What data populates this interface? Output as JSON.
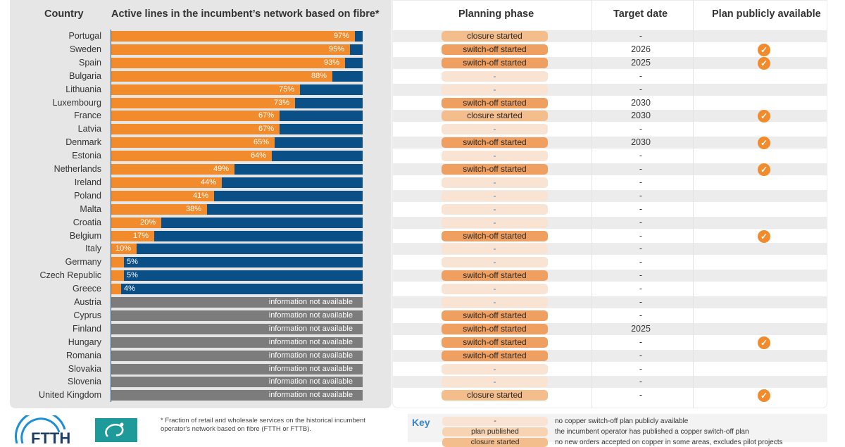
{
  "headers": {
    "country": "Country",
    "fibre": "Active lines in the incumbent’s network based on fibre*",
    "phase": "Planning phase",
    "target": "Target date",
    "plan": "Plan publicly available"
  },
  "chart_data": {
    "type": "bar",
    "orientation": "horizontal",
    "xlim": [
      0,
      100
    ],
    "categories": [
      "Portugal",
      "Sweden",
      "Spain",
      "Bulgaria",
      "Lithuania",
      "Luxembourg",
      "France",
      "Latvia",
      "Denmark",
      "Estonia",
      "Netherlands",
      "Ireland",
      "Poland",
      "Malta",
      "Croatia",
      "Belgium",
      "Italy",
      "Germany",
      "Czech Republic",
      "Greece",
      "Austria",
      "Cyprus",
      "Finland",
      "Hungary",
      "Romania",
      "Slovakia",
      "Slovenia",
      "United Kingdom"
    ],
    "values": [
      97,
      95,
      93,
      88,
      75,
      73,
      67,
      67,
      65,
      64,
      49,
      44,
      41,
      38,
      20,
      17,
      10,
      5,
      5,
      4,
      null,
      null,
      null,
      null,
      null,
      null,
      null,
      null
    ],
    "value_labels": [
      "97%",
      "95%",
      "93%",
      "88%",
      "75%",
      "73%",
      "67%",
      "67%",
      "65%",
      "64%",
      "49%",
      "44%",
      "41%",
      "38%",
      "20%",
      "17%",
      "10%",
      "5%",
      "5%",
      "4%",
      "information not available",
      "information not available",
      "information not available",
      "information not available",
      "information not available",
      "information not available",
      "information not available",
      "information not available"
    ],
    "colors": {
      "fibre": "#f28b2c",
      "remainder": "#0a4f86",
      "na": "#7c7c7c"
    }
  },
  "table": {
    "phase": [
      "closure started",
      "switch-off started",
      "switch-off started",
      "-",
      "-",
      "switch-off started",
      "closure started",
      "-",
      "switch-off started",
      "-",
      "switch-off started",
      "-",
      "-",
      "-",
      "-",
      "switch-off started",
      "-",
      "-",
      "switch-off started",
      "-",
      "-",
      "switch-off started",
      "switch-off started",
      "switch-off started",
      "switch-off started",
      "-",
      "-",
      "closure started"
    ],
    "target": [
      "-",
      "2026",
      "2025",
      "-",
      "-",
      "2030",
      "2030",
      "-",
      "2030",
      "-",
      "-",
      "-",
      "-",
      "-",
      "-",
      "-",
      "-",
      "-",
      "-",
      "-",
      "-",
      "-",
      "2025",
      "-",
      "-",
      "-",
      "-",
      "-"
    ],
    "plan_available": [
      false,
      true,
      true,
      false,
      false,
      false,
      true,
      false,
      true,
      false,
      true,
      false,
      false,
      false,
      false,
      true,
      false,
      false,
      false,
      false,
      false,
      false,
      false,
      true,
      false,
      false,
      false,
      true
    ]
  },
  "footnote": "* Fraction of retail and wholesale services on the historical incumbent operator's network based on fibre (FTTH or FTTB).",
  "logo_text": "FTTH",
  "key": {
    "title": "Key",
    "items": [
      {
        "label": "-",
        "desc": "no copper switch-off plan publicly available",
        "style": "none"
      },
      {
        "label": "plan published",
        "desc": "the incumbent operator has published a copper switch-off plan",
        "style": "published"
      },
      {
        "label": "closure started",
        "desc": "no new orders accepted on copper in some areas, excludes pilot projects",
        "style": "closure"
      }
    ]
  }
}
